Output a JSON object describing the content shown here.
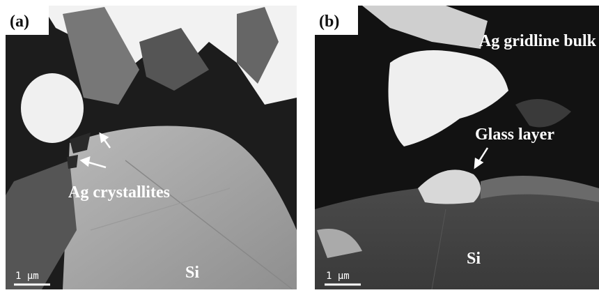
{
  "panels": [
    {
      "label": "(a)",
      "annotation": "Ag crystallites",
      "scale_bar": "1 μm",
      "region": "Si"
    },
    {
      "label": "(b)",
      "annotation_top": "Ag gridline bulk",
      "annotation": "Glass layer",
      "scale_bar": "1 μm",
      "region": "Si"
    }
  ]
}
